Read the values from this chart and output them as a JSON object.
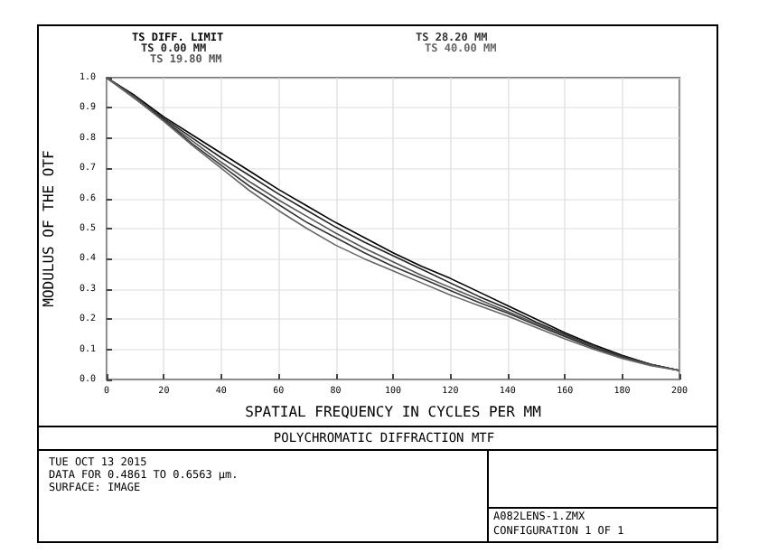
{
  "chart_data": {
    "type": "line",
    "title": "POLYCHROMATIC DIFFRACTION MTF",
    "xlabel": "SPATIAL FREQUENCY IN CYCLES PER MM",
    "ylabel": "MODULUS OF THE OTF",
    "x": [
      0,
      10,
      20,
      30,
      40,
      50,
      60,
      70,
      80,
      90,
      100,
      110,
      120,
      130,
      140,
      150,
      160,
      170,
      180,
      190,
      200
    ],
    "series": [
      {
        "name": "TS DIFF. LIMIT",
        "color": "#000000",
        "values": [
          1.0,
          0.94,
          0.87,
          0.81,
          0.75,
          0.69,
          0.63,
          0.575,
          0.52,
          0.47,
          0.42,
          0.375,
          0.335,
          0.29,
          0.245,
          0.2,
          0.155,
          0.115,
          0.08,
          0.05,
          0.03
        ]
      },
      {
        "name": "TS 0.00 MM",
        "color": "#222222",
        "values": [
          1.0,
          0.935,
          0.865,
          0.8,
          0.735,
          0.675,
          0.615,
          0.56,
          0.505,
          0.455,
          0.41,
          0.365,
          0.32,
          0.275,
          0.235,
          0.19,
          0.15,
          0.11,
          0.078,
          0.05,
          0.03
        ]
      },
      {
        "name": "TS 19.80 MM",
        "color": "#555555",
        "values": [
          1.0,
          0.935,
          0.86,
          0.79,
          0.72,
          0.655,
          0.595,
          0.54,
          0.485,
          0.435,
          0.39,
          0.345,
          0.305,
          0.265,
          0.225,
          0.185,
          0.145,
          0.108,
          0.075,
          0.05,
          0.03
        ]
      },
      {
        "name": "TS 28.20 MM",
        "color": "#333333",
        "values": [
          1.0,
          0.93,
          0.86,
          0.78,
          0.71,
          0.64,
          0.58,
          0.52,
          0.47,
          0.42,
          0.375,
          0.335,
          0.295,
          0.255,
          0.22,
          0.18,
          0.142,
          0.105,
          0.074,
          0.048,
          0.03
        ]
      },
      {
        "name": "TS 40.00 MM",
        "color": "#666666",
        "values": [
          1.0,
          0.93,
          0.855,
          0.775,
          0.7,
          0.625,
          0.56,
          0.5,
          0.445,
          0.4,
          0.36,
          0.32,
          0.28,
          0.245,
          0.21,
          0.172,
          0.135,
          0.1,
          0.07,
          0.046,
          0.03
        ]
      }
    ],
    "xlim": [
      0,
      200
    ],
    "xticks": [
      0,
      20,
      40,
      60,
      80,
      100,
      120,
      140,
      160,
      180,
      200
    ],
    "ylim": [
      0,
      1
    ],
    "yticks": [
      {
        "value": 0,
        "label": "0.0"
      },
      {
        "value": 0.1,
        "label": "0.1"
      },
      {
        "value": 0.2,
        "label": "0.2"
      },
      {
        "value": 0.3,
        "label": "0.3"
      },
      {
        "value": 0.4,
        "label": "0.4"
      },
      {
        "value": 0.5,
        "label": "0.5"
      },
      {
        "value": 0.6,
        "label": "0.6"
      },
      {
        "value": 0.7,
        "label": "0.7"
      },
      {
        "value": 0.8,
        "label": "0.8"
      },
      {
        "value": 0.9,
        "label": "0.9"
      },
      {
        "value": 1,
        "label": "1.0"
      }
    ],
    "grid": true,
    "marker": "none",
    "line_style": "solid",
    "annotations": [
      "TUE OCT 13 2015",
      "DATA FOR 0.4861 TO 0.6563 µm.",
      "SURFACE: IMAGE",
      "A082LENS-1.ZMX",
      "CONFIGURATION 1 OF 1"
    ]
  }
}
